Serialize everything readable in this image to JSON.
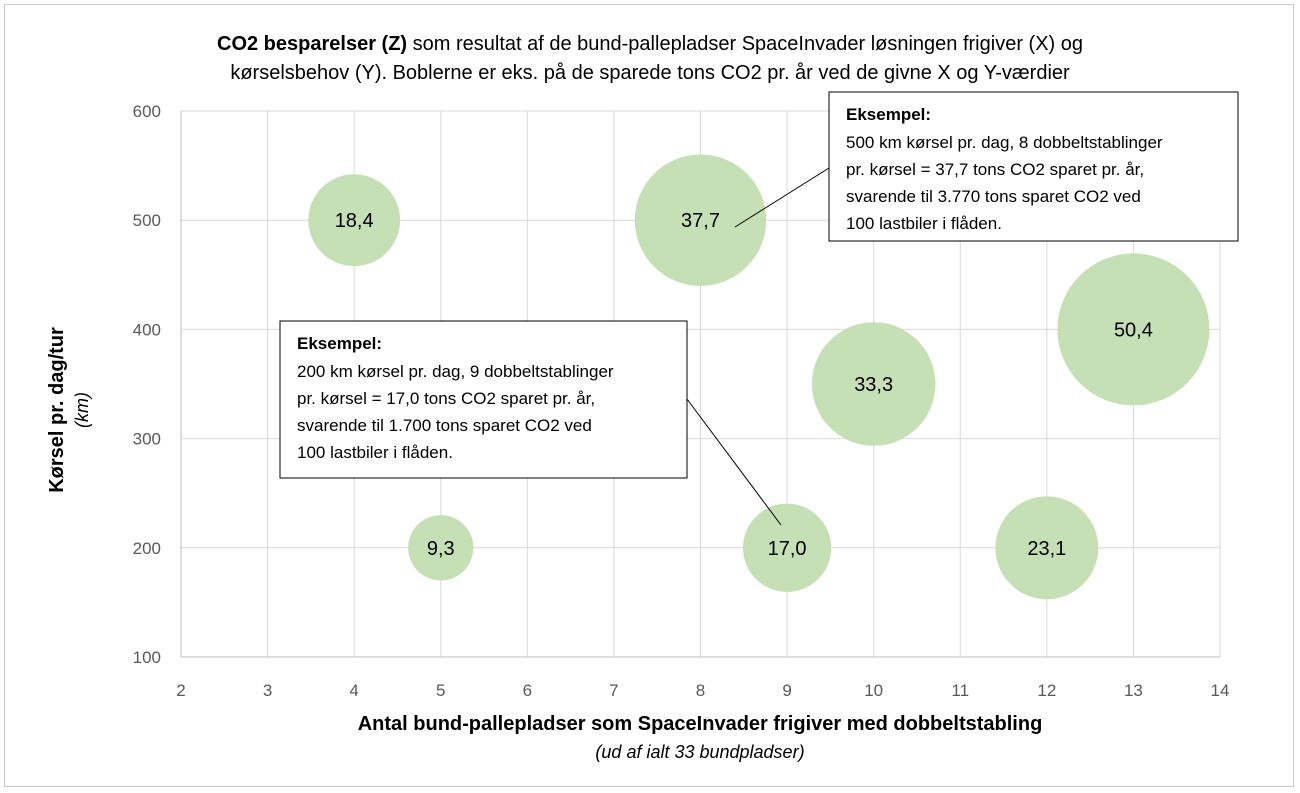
{
  "chart_data": {
    "type": "bubble",
    "title": {
      "bold_part": "CO2 besparelser (Z)",
      "rest_line1": " som resultat af de bund-pallepladser SpaceInvader løsningen frigiver (X) og",
      "line2": "kørselsbehov (Y). Boblerne er eks. på de sparede tons CO2 pr. år ved de givne X og Y-værdier"
    },
    "xlabel": "Antal bund-pallepladser som SpaceInvader frigiver med dobbeltstabling",
    "xlabel_sub": "(ud af ialt 33 bundpladser)",
    "ylabel": "Kørsel pr. dag/tur",
    "ylabel_sub": "(km)",
    "xlim": [
      2,
      14
    ],
    "ylim": [
      100,
      600
    ],
    "xticks": [
      2,
      3,
      4,
      5,
      6,
      7,
      8,
      9,
      10,
      11,
      12,
      13,
      14
    ],
    "yticks": [
      100,
      200,
      300,
      400,
      500,
      600
    ],
    "grid": true,
    "bubble_color": "#c5e0b4",
    "points": [
      {
        "x": 4,
        "y": 500,
        "z": 18.4,
        "label": "18,4"
      },
      {
        "x": 8,
        "y": 500,
        "z": 37.7,
        "label": "37,7"
      },
      {
        "x": 13,
        "y": 400,
        "z": 50.4,
        "label": "50,4"
      },
      {
        "x": 10,
        "y": 350,
        "z": 33.3,
        "label": "33,3"
      },
      {
        "x": 5,
        "y": 200,
        "z": 9.3,
        "label": "9,3"
      },
      {
        "x": 9,
        "y": 200,
        "z": 17.0,
        "label": "17,0"
      },
      {
        "x": 12,
        "y": 200,
        "z": 23.1,
        "label": "23,1"
      }
    ],
    "annotations": [
      {
        "target_point": 1,
        "heading": "Eksempel:",
        "lines": [
          "500 km kørsel pr. dag, 8 dobbeltstablinger",
          "pr. kørsel = 37,7 tons CO2 sparet pr. år,",
          "svarende til 3.770 tons sparet CO2 ved",
          "100 lastbiler i flåden."
        ]
      },
      {
        "target_point": 5,
        "heading": "Eksempel:",
        "lines": [
          "200 km kørsel pr. dag, 9 dobbeltstablinger",
          "pr. kørsel = 17,0 tons CO2 sparet pr. år,",
          "svarende til 1.700 tons sparet CO2 ved",
          "100 lastbiler i flåden."
        ]
      }
    ]
  }
}
